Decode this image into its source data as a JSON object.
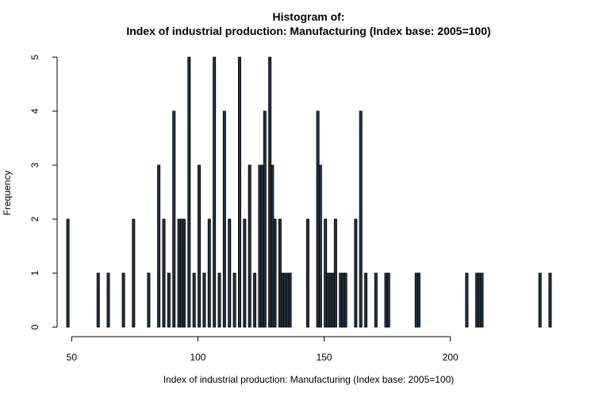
{
  "chart_data": {
    "type": "bar",
    "title_line1": "Histogram of:",
    "title_line2": "Index of industrial production: Manufacturing (Index base: 2005=100)",
    "xlabel": "Index of industrial production: Manufacturing (Index base: 2005=100)",
    "ylabel": "Frequency",
    "bin_width": 1,
    "xlim": [
      48,
      240
    ],
    "ylim": [
      0,
      5
    ],
    "x_ticks": [
      50,
      100,
      150,
      200
    ],
    "y_ticks": [
      0,
      1,
      2,
      3,
      4,
      5
    ],
    "grid": false,
    "legend": "none",
    "bar_color": "#243140",
    "bins": [
      {
        "x": 48,
        "count": 2
      },
      {
        "x": 49,
        "count": 0
      },
      {
        "x": 50,
        "count": 0
      },
      {
        "x": 51,
        "count": 0
      },
      {
        "x": 52,
        "count": 0
      },
      {
        "x": 53,
        "count": 0
      },
      {
        "x": 54,
        "count": 0
      },
      {
        "x": 55,
        "count": 0
      },
      {
        "x": 56,
        "count": 0
      },
      {
        "x": 57,
        "count": 0
      },
      {
        "x": 58,
        "count": 0
      },
      {
        "x": 59,
        "count": 0
      },
      {
        "x": 60,
        "count": 1
      },
      {
        "x": 61,
        "count": 0
      },
      {
        "x": 62,
        "count": 0
      },
      {
        "x": 63,
        "count": 0
      },
      {
        "x": 64,
        "count": 1
      },
      {
        "x": 65,
        "count": 0
      },
      {
        "x": 66,
        "count": 0
      },
      {
        "x": 67,
        "count": 0
      },
      {
        "x": 68,
        "count": 0
      },
      {
        "x": 69,
        "count": 0
      },
      {
        "x": 70,
        "count": 1
      },
      {
        "x": 71,
        "count": 0
      },
      {
        "x": 72,
        "count": 0
      },
      {
        "x": 73,
        "count": 0
      },
      {
        "x": 74,
        "count": 2
      },
      {
        "x": 75,
        "count": 0
      },
      {
        "x": 76,
        "count": 0
      },
      {
        "x": 77,
        "count": 0
      },
      {
        "x": 78,
        "count": 0
      },
      {
        "x": 79,
        "count": 0
      },
      {
        "x": 80,
        "count": 1
      },
      {
        "x": 81,
        "count": 0
      },
      {
        "x": 82,
        "count": 0
      },
      {
        "x": 83,
        "count": 0
      },
      {
        "x": 84,
        "count": 3
      },
      {
        "x": 85,
        "count": 0
      },
      {
        "x": 86,
        "count": 2
      },
      {
        "x": 87,
        "count": 0
      },
      {
        "x": 88,
        "count": 1
      },
      {
        "x": 89,
        "count": 0
      },
      {
        "x": 90,
        "count": 4
      },
      {
        "x": 91,
        "count": 0
      },
      {
        "x": 92,
        "count": 2
      },
      {
        "x": 93,
        "count": 2
      },
      {
        "x": 94,
        "count": 2
      },
      {
        "x": 95,
        "count": 0
      },
      {
        "x": 96,
        "count": 5
      },
      {
        "x": 97,
        "count": 0
      },
      {
        "x": 98,
        "count": 1
      },
      {
        "x": 99,
        "count": 0
      },
      {
        "x": 100,
        "count": 3
      },
      {
        "x": 101,
        "count": 0
      },
      {
        "x": 102,
        "count": 1
      },
      {
        "x": 103,
        "count": 0
      },
      {
        "x": 104,
        "count": 2
      },
      {
        "x": 105,
        "count": 0
      },
      {
        "x": 106,
        "count": 5
      },
      {
        "x": 107,
        "count": 0
      },
      {
        "x": 108,
        "count": 1
      },
      {
        "x": 109,
        "count": 0
      },
      {
        "x": 110,
        "count": 4
      },
      {
        "x": 111,
        "count": 0
      },
      {
        "x": 112,
        "count": 2
      },
      {
        "x": 113,
        "count": 0
      },
      {
        "x": 114,
        "count": 1
      },
      {
        "x": 115,
        "count": 0
      },
      {
        "x": 116,
        "count": 5
      },
      {
        "x": 117,
        "count": 0
      },
      {
        "x": 118,
        "count": 2
      },
      {
        "x": 119,
        "count": 0
      },
      {
        "x": 120,
        "count": 3
      },
      {
        "x": 121,
        "count": 0
      },
      {
        "x": 122,
        "count": 1
      },
      {
        "x": 123,
        "count": 0
      },
      {
        "x": 124,
        "count": 3
      },
      {
        "x": 125,
        "count": 3
      },
      {
        "x": 126,
        "count": 4
      },
      {
        "x": 127,
        "count": 0
      },
      {
        "x": 128,
        "count": 5
      },
      {
        "x": 129,
        "count": 3
      },
      {
        "x": 130,
        "count": 2
      },
      {
        "x": 131,
        "count": 0
      },
      {
        "x": 132,
        "count": 2
      },
      {
        "x": 133,
        "count": 1
      },
      {
        "x": 134,
        "count": 1
      },
      {
        "x": 135,
        "count": 1
      },
      {
        "x": 136,
        "count": 1
      },
      {
        "x": 137,
        "count": 0
      },
      {
        "x": 138,
        "count": 0
      },
      {
        "x": 139,
        "count": 0
      },
      {
        "x": 140,
        "count": 0
      },
      {
        "x": 141,
        "count": 0
      },
      {
        "x": 142,
        "count": 0
      },
      {
        "x": 143,
        "count": 2
      },
      {
        "x": 144,
        "count": 0
      },
      {
        "x": 145,
        "count": 0
      },
      {
        "x": 146,
        "count": 0
      },
      {
        "x": 147,
        "count": 4
      },
      {
        "x": 148,
        "count": 3
      },
      {
        "x": 149,
        "count": 0
      },
      {
        "x": 150,
        "count": 2
      },
      {
        "x": 151,
        "count": 1
      },
      {
        "x": 152,
        "count": 1
      },
      {
        "x": 153,
        "count": 1
      },
      {
        "x": 154,
        "count": 2
      },
      {
        "x": 155,
        "count": 0
      },
      {
        "x": 156,
        "count": 1
      },
      {
        "x": 157,
        "count": 1
      },
      {
        "x": 158,
        "count": 1
      },
      {
        "x": 159,
        "count": 0
      },
      {
        "x": 160,
        "count": 0
      },
      {
        "x": 161,
        "count": 0
      },
      {
        "x": 162,
        "count": 2
      },
      {
        "x": 163,
        "count": 0
      },
      {
        "x": 164,
        "count": 4
      },
      {
        "x": 165,
        "count": 0
      },
      {
        "x": 166,
        "count": 1
      },
      {
        "x": 167,
        "count": 0
      },
      {
        "x": 168,
        "count": 0
      },
      {
        "x": 169,
        "count": 0
      },
      {
        "x": 170,
        "count": 1
      },
      {
        "x": 171,
        "count": 0
      },
      {
        "x": 172,
        "count": 0
      },
      {
        "x": 173,
        "count": 0
      },
      {
        "x": 174,
        "count": 1
      },
      {
        "x": 175,
        "count": 1
      },
      {
        "x": 176,
        "count": 0
      },
      {
        "x": 177,
        "count": 0
      },
      {
        "x": 178,
        "count": 0
      },
      {
        "x": 179,
        "count": 0
      },
      {
        "x": 180,
        "count": 0
      },
      {
        "x": 181,
        "count": 0
      },
      {
        "x": 182,
        "count": 0
      },
      {
        "x": 183,
        "count": 0
      },
      {
        "x": 184,
        "count": 0
      },
      {
        "x": 185,
        "count": 0
      },
      {
        "x": 186,
        "count": 1
      },
      {
        "x": 187,
        "count": 1
      },
      {
        "x": 188,
        "count": 0
      },
      {
        "x": 189,
        "count": 0
      },
      {
        "x": 190,
        "count": 0
      },
      {
        "x": 191,
        "count": 0
      },
      {
        "x": 192,
        "count": 0
      },
      {
        "x": 193,
        "count": 0
      },
      {
        "x": 194,
        "count": 0
      },
      {
        "x": 195,
        "count": 0
      },
      {
        "x": 196,
        "count": 0
      },
      {
        "x": 197,
        "count": 0
      },
      {
        "x": 198,
        "count": 0
      },
      {
        "x": 199,
        "count": 0
      },
      {
        "x": 200,
        "count": 0
      },
      {
        "x": 201,
        "count": 0
      },
      {
        "x": 202,
        "count": 0
      },
      {
        "x": 203,
        "count": 0
      },
      {
        "x": 204,
        "count": 0
      },
      {
        "x": 205,
        "count": 0
      },
      {
        "x": 206,
        "count": 1
      },
      {
        "x": 207,
        "count": 0
      },
      {
        "x": 208,
        "count": 0
      },
      {
        "x": 209,
        "count": 0
      },
      {
        "x": 210,
        "count": 1
      },
      {
        "x": 211,
        "count": 1
      },
      {
        "x": 212,
        "count": 1
      },
      {
        "x": 213,
        "count": 0
      },
      {
        "x": 214,
        "count": 0
      },
      {
        "x": 215,
        "count": 0
      },
      {
        "x": 216,
        "count": 0
      },
      {
        "x": 217,
        "count": 0
      },
      {
        "x": 218,
        "count": 0
      },
      {
        "x": 219,
        "count": 0
      },
      {
        "x": 220,
        "count": 0
      },
      {
        "x": 221,
        "count": 0
      },
      {
        "x": 222,
        "count": 0
      },
      {
        "x": 223,
        "count": 0
      },
      {
        "x": 224,
        "count": 0
      },
      {
        "x": 225,
        "count": 0
      },
      {
        "x": 226,
        "count": 0
      },
      {
        "x": 227,
        "count": 0
      },
      {
        "x": 228,
        "count": 0
      },
      {
        "x": 229,
        "count": 0
      },
      {
        "x": 230,
        "count": 0
      },
      {
        "x": 231,
        "count": 0
      },
      {
        "x": 232,
        "count": 0
      },
      {
        "x": 233,
        "count": 0
      },
      {
        "x": 234,
        "count": 0
      },
      {
        "x": 235,
        "count": 1
      },
      {
        "x": 236,
        "count": 0
      },
      {
        "x": 237,
        "count": 0
      },
      {
        "x": 238,
        "count": 0
      },
      {
        "x": 239,
        "count": 1
      }
    ]
  }
}
